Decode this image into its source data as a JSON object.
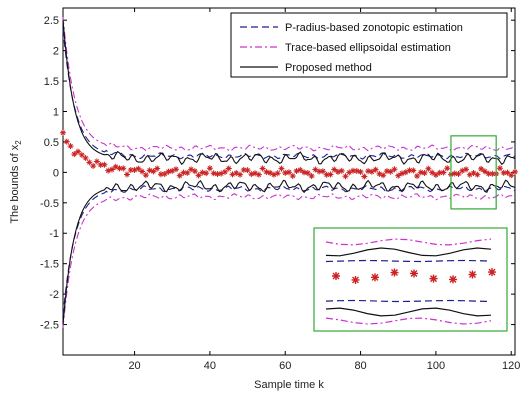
{
  "chart_data": {
    "type": "line",
    "xlabel": "Sample time k",
    "ylabel": "The bounds of x",
    "ylabel_subscript": "2",
    "xlim": [
      1,
      121
    ],
    "ylim": [
      -3,
      2.7
    ],
    "xticks": [
      20,
      40,
      60,
      80,
      100,
      120
    ],
    "yticks": [
      -2.5,
      -2,
      -1.5,
      -1,
      -0.5,
      0,
      0.5,
      1,
      1.5,
      2,
      2.5
    ],
    "x_tick_labels": [
      "20",
      "40",
      "60",
      "80",
      "100",
      "120"
    ],
    "y_tick_labels": [
      "-2.5",
      "-2",
      "-1.5",
      "-1",
      "-0.5",
      "0",
      "0.5",
      "1",
      "1.5",
      "2",
      "2.5"
    ],
    "legend_placement": "top-right",
    "series": [
      {
        "name": "P-radius-based zonotopic estimation",
        "style": "dashed",
        "color": "#1f1f8f",
        "upper": {
          "start": 2.35,
          "steady": 0.27,
          "decay": 3.2
        },
        "lower": {
          "start": -2.35,
          "steady": -0.27,
          "decay": 3.2
        }
      },
      {
        "name": "Trace-based ellipsoidal estimation",
        "style": "dashdot",
        "color": "#cc33cc",
        "upper": {
          "start": 2.55,
          "steady": 0.4,
          "decay": 3.2
        },
        "lower": {
          "start": -2.55,
          "steady": -0.4,
          "decay": 3.2
        }
      },
      {
        "name": "Proposed method",
        "style": "solid",
        "color": "#111111",
        "upper": {
          "start": 2.5,
          "steady": 0.23,
          "decay": 3.0
        },
        "lower": {
          "start": -2.5,
          "steady": -0.23,
          "decay": 3.0
        }
      }
    ],
    "state_marker": {
      "color": "#cc2222",
      "start": 0.6,
      "decay": 6
    },
    "zoom_region": {
      "x": [
        104,
        116
      ],
      "y": [
        -0.6,
        0.6
      ],
      "color": "#33aa33"
    }
  }
}
